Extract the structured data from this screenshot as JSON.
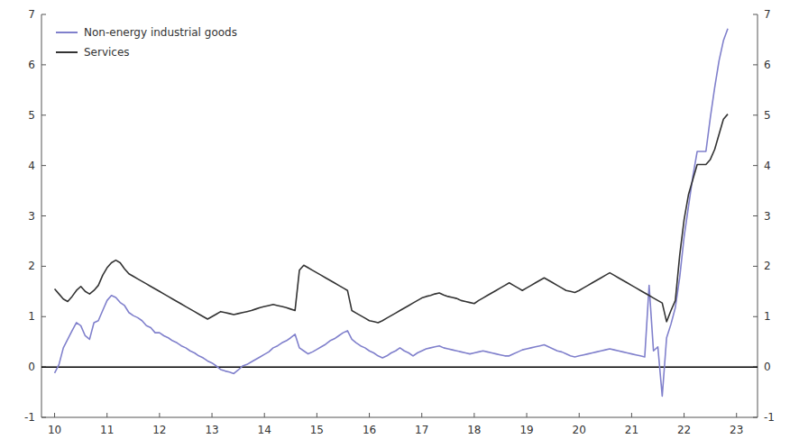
{
  "chart_data": {
    "type": "line",
    "x": [
      10,
      10.083333333333334,
      10.166666666666666,
      10.25,
      10.333333333333334,
      10.416666666666666,
      10.5,
      10.583333333333334,
      10.666666666666666,
      10.75,
      10.833333333333334,
      10.916666666666666,
      11,
      11.083333333333334,
      11.166666666666666,
      11.25,
      11.333333333333334,
      11.416666666666666,
      11.5,
      11.583333333333334,
      11.666666666666666,
      11.75,
      11.833333333333334,
      11.916666666666666,
      12,
      12.083333333333334,
      12.166666666666666,
      12.25,
      12.333333333333334,
      12.416666666666666,
      12.5,
      12.583333333333334,
      12.666666666666666,
      12.75,
      12.833333333333334,
      12.916666666666666,
      13,
      13.083333333333334,
      13.166666666666666,
      13.25,
      13.333333333333334,
      13.416666666666666,
      13.5,
      13.583333333333334,
      13.666666666666666,
      13.75,
      13.833333333333334,
      13.916666666666666,
      14,
      14.083333333333334,
      14.166666666666666,
      14.25,
      14.333333333333334,
      14.416666666666666,
      14.5,
      14.583333333333334,
      14.666666666666666,
      14.75,
      14.833333333333334,
      14.916666666666666,
      15,
      15.083333333333334,
      15.166666666666666,
      15.25,
      15.333333333333334,
      15.416666666666666,
      15.5,
      15.583333333333334,
      15.666666666666666,
      15.75,
      15.833333333333334,
      15.916666666666666,
      16,
      16.083333333333332,
      16.166666666666668,
      16.25,
      16.333333333333332,
      16.416666666666668,
      16.5,
      16.583333333333332,
      16.666666666666668,
      16.75,
      16.833333333333332,
      16.916666666666668,
      17,
      17.083333333333332,
      17.166666666666668,
      17.25,
      17.333333333333332,
      17.416666666666668,
      17.5,
      17.583333333333332,
      17.666666666666668,
      17.75,
      17.833333333333332,
      17.916666666666668,
      18,
      18.083333333333332,
      18.166666666666668,
      18.25,
      18.333333333333332,
      18.416666666666668,
      18.5,
      18.583333333333332,
      18.666666666666668,
      18.75,
      18.833333333333332,
      18.916666666666668,
      19,
      19.083333333333332,
      19.166666666666668,
      19.25,
      19.333333333333332,
      19.416666666666668,
      19.5,
      19.583333333333332,
      19.666666666666668,
      19.75,
      19.833333333333332,
      19.916666666666668,
      20,
      20.083333333333332,
      20.166666666666668,
      20.25,
      20.333333333333332,
      20.416666666666668,
      20.5,
      20.583333333333332,
      20.666666666666668,
      20.75,
      20.833333333333332,
      20.916666666666668,
      21,
      21.083333333333332,
      21.166666666666668,
      21.25,
      21.333333333333332,
      21.416666666666668,
      21.5,
      21.583333333333332,
      21.666666666666668,
      21.75,
      21.833333333333332,
      21.916666666666668,
      22,
      22.083333333333332,
      22.166666666666668,
      22.25,
      22.333333333333332,
      22.416666666666668,
      22.5,
      22.583333333333332,
      22.666666666666668,
      22.75,
      22.833333333333332
    ],
    "series": [
      {
        "name": "Non-energy industrial goods",
        "color": "#8080cc",
        "values": [
          -0.12,
          0.05,
          0.38,
          0.55,
          0.72,
          0.88,
          0.82,
          0.62,
          0.55,
          0.88,
          0.92,
          1.12,
          1.32,
          1.42,
          1.38,
          1.28,
          1.22,
          1.08,
          1.02,
          0.98,
          0.92,
          0.82,
          0.78,
          0.68,
          0.68,
          0.62,
          0.58,
          0.52,
          0.48,
          0.42,
          0.38,
          0.32,
          0.28,
          0.22,
          0.18,
          0.12,
          0.08,
          0.02,
          -0.05,
          -0.08,
          -0.1,
          -0.13,
          -0.06,
          0.02,
          0.05,
          0.1,
          0.15,
          0.2,
          0.25,
          0.3,
          0.38,
          0.42,
          0.48,
          0.52,
          0.58,
          0.65,
          0.38,
          0.32,
          0.26,
          0.3,
          0.35,
          0.4,
          0.45,
          0.52,
          0.56,
          0.62,
          0.68,
          0.72,
          0.55,
          0.48,
          0.42,
          0.38,
          0.32,
          0.28,
          0.22,
          0.18,
          0.22,
          0.28,
          0.32,
          0.38,
          0.32,
          0.28,
          0.22,
          0.28,
          0.32,
          0.36,
          0.38,
          0.4,
          0.42,
          0.38,
          0.36,
          0.34,
          0.32,
          0.3,
          0.28,
          0.26,
          0.28,
          0.3,
          0.32,
          0.3,
          0.28,
          0.26,
          0.24,
          0.22,
          0.22,
          0.26,
          0.3,
          0.34,
          0.36,
          0.38,
          0.4,
          0.42,
          0.44,
          0.4,
          0.36,
          0.32,
          0.3,
          0.26,
          0.22,
          0.2,
          0.22,
          0.24,
          0.26,
          0.28,
          0.3,
          0.32,
          0.34,
          0.36,
          0.34,
          0.32,
          0.3,
          0.28,
          0.26,
          0.24,
          0.22,
          0.2,
          1.62,
          0.32,
          0.4,
          -0.58,
          0.58,
          0.85,
          1.18,
          1.78,
          2.58,
          3.18,
          3.78,
          4.28,
          4.28,
          4.28,
          4.95,
          5.55,
          6.08,
          6.48,
          6.72
        ]
      },
      {
        "name": "Services",
        "color": "#333333",
        "values": [
          1.55,
          1.45,
          1.35,
          1.3,
          1.4,
          1.52,
          1.6,
          1.5,
          1.45,
          1.52,
          1.62,
          1.82,
          1.97,
          2.07,
          2.12,
          2.07,
          1.95,
          1.85,
          1.8,
          1.75,
          1.7,
          1.65,
          1.6,
          1.55,
          1.5,
          1.45,
          1.4,
          1.35,
          1.3,
          1.25,
          1.2,
          1.15,
          1.1,
          1.05,
          1.0,
          0.95,
          1.0,
          1.05,
          1.1,
          1.08,
          1.06,
          1.04,
          1.06,
          1.08,
          1.1,
          1.12,
          1.15,
          1.18,
          1.2,
          1.22,
          1.24,
          1.22,
          1.2,
          1.18,
          1.15,
          1.12,
          1.92,
          2.02,
          1.97,
          1.92,
          1.87,
          1.82,
          1.77,
          1.72,
          1.67,
          1.62,
          1.57,
          1.52,
          1.12,
          1.07,
          1.02,
          0.97,
          0.92,
          0.9,
          0.88,
          0.92,
          0.97,
          1.02,
          1.07,
          1.12,
          1.17,
          1.22,
          1.27,
          1.32,
          1.37,
          1.4,
          1.42,
          1.45,
          1.47,
          1.43,
          1.4,
          1.38,
          1.36,
          1.32,
          1.3,
          1.28,
          1.26,
          1.32,
          1.37,
          1.42,
          1.47,
          1.52,
          1.57,
          1.62,
          1.67,
          1.62,
          1.57,
          1.52,
          1.57,
          1.62,
          1.67,
          1.72,
          1.77,
          1.72,
          1.67,
          1.62,
          1.57,
          1.52,
          1.5,
          1.48,
          1.52,
          1.57,
          1.62,
          1.67,
          1.72,
          1.77,
          1.82,
          1.87,
          1.82,
          1.77,
          1.72,
          1.67,
          1.62,
          1.57,
          1.52,
          1.47,
          1.42,
          1.37,
          1.32,
          1.27,
          0.9,
          1.12,
          1.32,
          2.22,
          2.92,
          3.42,
          3.72,
          4.02,
          4.02,
          4.02,
          4.12,
          4.32,
          4.62,
          4.92,
          5.02
        ]
      }
    ],
    "xlim": [
      9.75,
      23.4
    ],
    "xticks": [
      10,
      11,
      12,
      13,
      14,
      15,
      16,
      17,
      18,
      19,
      20,
      21,
      22,
      23
    ],
    "ylim": [
      -1,
      7
    ],
    "yticks": [
      -1,
      0,
      1,
      2,
      3,
      4,
      5,
      6,
      7
    ],
    "y2lim": [
      -1,
      7
    ],
    "y2ticks": [
      -1,
      0,
      1,
      2,
      3,
      4,
      5,
      6,
      7
    ],
    "grid": false,
    "legend": "upper left"
  }
}
